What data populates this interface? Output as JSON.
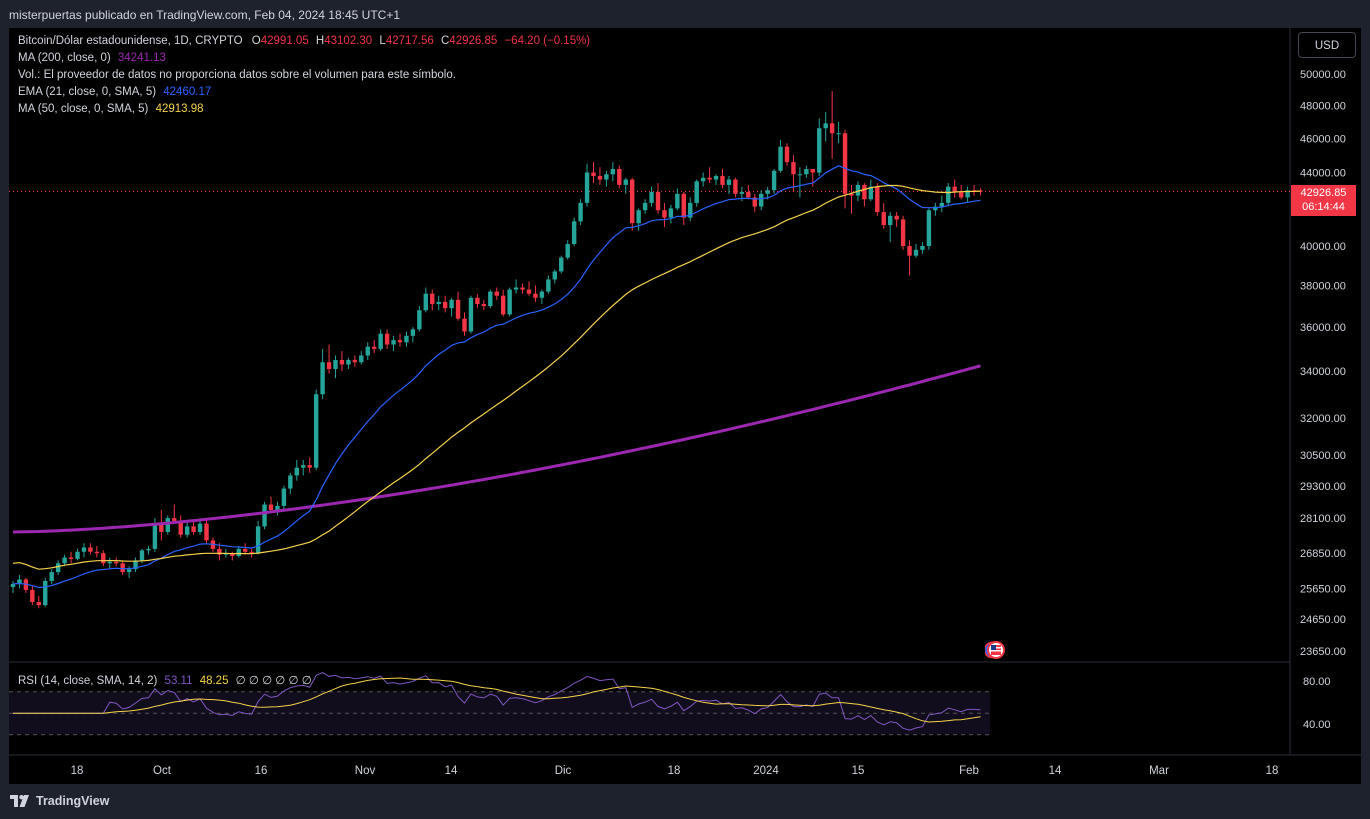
{
  "header": {
    "title": "misterpuertas publicado en TradingView.com, Feb 04, 2024 18:45 UTC+1"
  },
  "legend": {
    "symbol": "Bitcoin/Dólar estadounidense, 1D, CRYPTO",
    "open_label": "O",
    "open": "42991.05",
    "high_label": "H",
    "high": "43102.30",
    "low_label": "L",
    "low": "42717.56",
    "close_label": "C",
    "close": "42926.85",
    "change": "−64.20 (−0.15%)",
    "ma200_label": "MA (200, close, 0)",
    "ma200_value": "34241.13",
    "vol_label": "Vol.: El proveedor de datos no proporciona datos sobre el volumen para este símbolo.",
    "ema21_label": "EMA (21, close, 0, SMA, 5)",
    "ema21_value": "42460.17",
    "ma50_label": "MA (50, close, 0, SMA, 5)",
    "ma50_value": "42913.98",
    "rsi_label": "RSI (14, close, SMA, 14, 2)",
    "rsi_value": "53.11",
    "rsi_sma_value": "48.25",
    "rsi_extra": "∅ ∅ ∅ ∅ ∅ ∅"
  },
  "currency_button": "USD",
  "last_price": {
    "price": "42926.85",
    "countdown": "06:14:44"
  },
  "price_axis_ticks": [
    "50000.00",
    "48000.00",
    "46000.00",
    "44000.00",
    "40000.00",
    "38000.00",
    "36000.00",
    "34000.00",
    "32000.00",
    "30500.00",
    "29300.00",
    "28100.00",
    "26850.00",
    "25650.00",
    "24650.00",
    "23650.00"
  ],
  "rsi_axis_ticks": [
    "80.00",
    "40.00"
  ],
  "time_axis_ticks": [
    "18",
    "Oct",
    "16",
    "Nov",
    "14",
    "Dic",
    "18",
    "2024",
    "15",
    "Feb",
    "14",
    "Mar",
    "18"
  ],
  "footer": {
    "brand": "TradingView"
  },
  "colors": {
    "up": "#26a69a",
    "down": "#f23645",
    "ma200": "#9c27b0",
    "ema21": "#2962ff",
    "ma50": "#f5d24b",
    "rsi_line": "#7e57c2",
    "rsi_sma": "#f5d24b"
  },
  "chart_data": {
    "type": "candlestick",
    "symbol": "BTCUSD",
    "timeframe": "1D",
    "log_scale": true,
    "first_date": "2023-09-06",
    "ohlc": [
      [
        25700,
        25900,
        25500,
        25800
      ],
      [
        25800,
        26100,
        25650,
        25950
      ],
      [
        25950,
        26000,
        25500,
        25600
      ],
      [
        25600,
        25750,
        25100,
        25200
      ],
      [
        25200,
        25400,
        25000,
        25100
      ],
      [
        25100,
        26000,
        25050,
        25900
      ],
      [
        25900,
        26300,
        25800,
        26200
      ],
      [
        26200,
        26600,
        26100,
        26500
      ],
      [
        26500,
        26800,
        26400,
        26700
      ],
      [
        26700,
        26900,
        26500,
        26650
      ],
      [
        26650,
        27000,
        26600,
        26900
      ],
      [
        26900,
        27200,
        26700,
        27050
      ],
      [
        27050,
        27200,
        26800,
        26900
      ],
      [
        26900,
        27100,
        26700,
        26850
      ],
      [
        26850,
        26950,
        26400,
        26500
      ],
      [
        26500,
        26700,
        26300,
        26550
      ],
      [
        26550,
        26700,
        26400,
        26500
      ],
      [
        26500,
        26600,
        26100,
        26200
      ],
      [
        26200,
        26400,
        26000,
        26300
      ],
      [
        26300,
        26700,
        26200,
        26600
      ],
      [
        26600,
        27000,
        26500,
        26950
      ],
      [
        26950,
        27100,
        26800,
        27000
      ],
      [
        27000,
        28100,
        26900,
        27900
      ],
      [
        27900,
        28400,
        27300,
        27600
      ],
      [
        27600,
        28200,
        27500,
        28100
      ],
      [
        28100,
        28600,
        27900,
        28000
      ],
      [
        28000,
        28200,
        27400,
        27500
      ],
      [
        27500,
        28000,
        27400,
        27800
      ],
      [
        27800,
        28000,
        27500,
        27600
      ],
      [
        27600,
        28100,
        27500,
        27900
      ],
      [
        27900,
        28100,
        27200,
        27300
      ],
      [
        27300,
        27400,
        26900,
        27000
      ],
      [
        27000,
        27200,
        26600,
        26800
      ],
      [
        26800,
        27000,
        26700,
        26850
      ],
      [
        26850,
        26900,
        26600,
        26750
      ],
      [
        26750,
        27100,
        26700,
        27000
      ],
      [
        27000,
        27200,
        26800,
        26900
      ],
      [
        26900,
        27000,
        26700,
        26850
      ],
      [
        26850,
        28000,
        26800,
        27800
      ],
      [
        27800,
        28700,
        27700,
        28600
      ],
      [
        28600,
        28900,
        28300,
        28400
      ],
      [
        28400,
        28700,
        28200,
        28550
      ],
      [
        28550,
        29300,
        28400,
        29200
      ],
      [
        29200,
        29800,
        29000,
        29700
      ],
      [
        29700,
        30300,
        29500,
        30000
      ],
      [
        30000,
        30300,
        29700,
        30100
      ],
      [
        30100,
        30400,
        29800,
        30000
      ],
      [
        30000,
        33200,
        29900,
        33000
      ],
      [
        33000,
        35000,
        32800,
        34400
      ],
      [
        34400,
        35200,
        33900,
        34100
      ],
      [
        34100,
        34700,
        33700,
        34500
      ],
      [
        34500,
        34900,
        34000,
        34300
      ],
      [
        34300,
        34600,
        34100,
        34500
      ],
      [
        34500,
        34700,
        34200,
        34400
      ],
      [
        34400,
        34900,
        34300,
        34700
      ],
      [
        34700,
        35300,
        34500,
        35100
      ],
      [
        35100,
        35400,
        34800,
        35000
      ],
      [
        35000,
        35900,
        34900,
        35700
      ],
      [
        35700,
        35900,
        35000,
        35200
      ],
      [
        35200,
        35600,
        34900,
        35400
      ],
      [
        35400,
        35700,
        35100,
        35300
      ],
      [
        35300,
        35800,
        35100,
        35600
      ],
      [
        35600,
        36000,
        35300,
        35900
      ],
      [
        35900,
        37000,
        35800,
        36800
      ],
      [
        36800,
        37900,
        36700,
        37600
      ],
      [
        37600,
        37800,
        36800,
        37100
      ],
      [
        37100,
        37500,
        36800,
        37200
      ],
      [
        37200,
        37500,
        36700,
        36900
      ],
      [
        36900,
        37400,
        36500,
        37300
      ],
      [
        37300,
        37700,
        36300,
        36400
      ],
      [
        36400,
        36700,
        35600,
        35800
      ],
      [
        35800,
        37500,
        35700,
        37400
      ],
      [
        37400,
        37600,
        36900,
        37100
      ],
      [
        37100,
        37300,
        36800,
        37000
      ],
      [
        37000,
        37800,
        36900,
        37700
      ],
      [
        37700,
        37900,
        37300,
        37500
      ],
      [
        37500,
        37800,
        36500,
        36600
      ],
      [
        36600,
        37900,
        36500,
        37800
      ],
      [
        37800,
        38300,
        37600,
        37900
      ],
      [
        37900,
        38100,
        37600,
        37800
      ],
      [
        37800,
        38200,
        37500,
        37600
      ],
      [
        37600,
        38000,
        37200,
        37400
      ],
      [
        37400,
        37800,
        37100,
        37700
      ],
      [
        37700,
        38500,
        37600,
        38300
      ],
      [
        38300,
        38800,
        38100,
        38700
      ],
      [
        38700,
        39500,
        38600,
        39400
      ],
      [
        39400,
        40300,
        39300,
        40100
      ],
      [
        40100,
        41500,
        40000,
        41300
      ],
      [
        41300,
        42500,
        41100,
        42300
      ],
      [
        42300,
        44500,
        42100,
        44000
      ],
      [
        44000,
        44600,
        43400,
        43800
      ],
      [
        43800,
        44300,
        43300,
        43600
      ],
      [
        43600,
        44100,
        43200,
        43900
      ],
      [
        43900,
        44600,
        43500,
        44200
      ],
      [
        44200,
        44400,
        43100,
        43300
      ],
      [
        43300,
        43700,
        42800,
        43600
      ],
      [
        43600,
        43700,
        40800,
        41200
      ],
      [
        41200,
        42000,
        40800,
        41900
      ],
      [
        41900,
        42500,
        41700,
        42300
      ],
      [
        42300,
        43200,
        42100,
        42900
      ],
      [
        42900,
        43400,
        41700,
        41900
      ],
      [
        41900,
        42300,
        41000,
        41500
      ],
      [
        41500,
        42200,
        41200,
        42000
      ],
      [
        42000,
        43100,
        41900,
        42800
      ],
      [
        42800,
        42900,
        41100,
        41500
      ],
      [
        41500,
        42600,
        41300,
        42300
      ],
      [
        42300,
        43600,
        42100,
        43500
      ],
      [
        43500,
        44000,
        43200,
        43700
      ],
      [
        43700,
        44300,
        43400,
        43600
      ],
      [
        43600,
        43900,
        43300,
        43800
      ],
      [
        43800,
        44200,
        43100,
        43300
      ],
      [
        43300,
        43800,
        42800,
        43600
      ],
      [
        43600,
        43700,
        42600,
        42800
      ],
      [
        42800,
        43200,
        42400,
        42900
      ],
      [
        42900,
        43300,
        42500,
        42600
      ],
      [
        42600,
        42800,
        41800,
        42100
      ],
      [
        42100,
        43000,
        41900,
        42800
      ],
      [
        42800,
        43200,
        42500,
        43000
      ],
      [
        43000,
        44200,
        42800,
        44100
      ],
      [
        44100,
        45900,
        44000,
        45500
      ],
      [
        45500,
        45700,
        44400,
        44600
      ],
      [
        44600,
        45000,
        42900,
        43900
      ],
      [
        43900,
        44300,
        42600,
        43900
      ],
      [
        43900,
        44400,
        43700,
        44200
      ],
      [
        44200,
        44200,
        43200,
        44000
      ],
      [
        44000,
        47200,
        43800,
        46600
      ],
      [
        46600,
        47600,
        45800,
        46900
      ],
      [
        46900,
        48900,
        44800,
        46300
      ],
      [
        46300,
        47000,
        45700,
        46300
      ],
      [
        46300,
        46500,
        42000,
        42800
      ],
      [
        42800,
        43300,
        41700,
        42700
      ],
      [
        42700,
        43500,
        42400,
        43300
      ],
      [
        43300,
        43400,
        42100,
        42500
      ],
      [
        42500,
        43600,
        42400,
        43200
      ],
      [
        43200,
        43400,
        41600,
        41800
      ],
      [
        41800,
        42300,
        40900,
        41100
      ],
      [
        41100,
        41800,
        40200,
        41600
      ],
      [
        41600,
        41800,
        41000,
        41400
      ],
      [
        41400,
        41600,
        39800,
        40000
      ],
      [
        40000,
        40300,
        38500,
        39500
      ],
      [
        39500,
        40100,
        39400,
        39800
      ],
      [
        39800,
        40200,
        39600,
        40000
      ],
      [
        40000,
        42000,
        39800,
        41900
      ],
      [
        41900,
        42300,
        41600,
        42100
      ],
      [
        42100,
        42700,
        41800,
        42300
      ],
      [
        42300,
        43400,
        42100,
        43200
      ],
      [
        43200,
        43600,
        42600,
        42900
      ],
      [
        42900,
        43300,
        42500,
        42600
      ],
      [
        42600,
        43200,
        42300,
        43000
      ],
      [
        43000,
        43300,
        42700,
        42991
      ],
      [
        42991.05,
        43102.3,
        42717.56,
        42926.85
      ]
    ],
    "ma200_range": [
      27600,
      34241.13
    ],
    "ema21_last": 42460.17,
    "ma50_last": 42913.98,
    "rsi_last": 53.11,
    "rsi_sma_last": 48.25,
    "rsi_bands": [
      70,
      50,
      30
    ]
  }
}
